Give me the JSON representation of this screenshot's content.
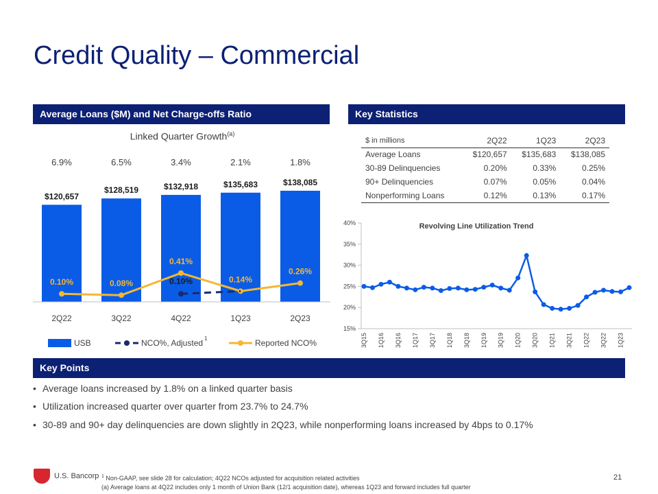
{
  "page": {
    "title": "Credit Quality – Commercial",
    "page_number": "21",
    "logo_text": "U.S. Bancorp"
  },
  "left_panel": {
    "header": "Average Loans ($M) and Net Charge-offs Ratio",
    "growth_title": "Linked Quarter Growth",
    "growth_title_sup": "(a)",
    "growth_values": [
      "6.9%",
      "6.5%",
      "3.4%",
      "2.1%",
      "1.8%"
    ]
  },
  "right_panel": {
    "header": "Key Statistics",
    "table": {
      "columns": [
        "$ in millions",
        "2Q22",
        "1Q23",
        "2Q23"
      ],
      "rows": [
        [
          "Average Loans",
          "$120,657",
          "$135,683",
          "$138,085"
        ],
        [
          "30-89 Delinquencies",
          "0.20%",
          "0.33%",
          "0.25%"
        ],
        [
          "90+ Delinquencies",
          "0.07%",
          "0.05%",
          "0.04%"
        ],
        [
          "Nonperforming Loans",
          "0.12%",
          "0.13%",
          "0.17%"
        ]
      ]
    }
  },
  "key_points": {
    "header": "Key Points",
    "items": [
      "Average loans increased by 1.8% on a linked quarter basis",
      "Utilization increased quarter over quarter from 23.7% to 24.7%",
      "30-89 and 90+ day delinquencies are down slightly in 2Q23, while nonperforming loans increased by 4bps to 0.17%"
    ]
  },
  "footnotes": {
    "note1_sup": "1",
    "note1": "Non-GAAP, see slide 28 for calculation; 4Q22 NCOs adjusted for acquisition related activities",
    "note2": "(a) Average loans at 4Q22 includes only 1 month of Union Bank (12/1 acquisition date), whereas 1Q23 and forward includes full quarter"
  },
  "colors": {
    "navy": "#0c2074",
    "bar_blue": "#0a5ce6",
    "gold": "#f5b731",
    "dark_navy_line": "#1a2a6c",
    "brand_red": "#d7262e"
  },
  "chart_data": [
    {
      "type": "bar",
      "categories": [
        "2Q22",
        "3Q22",
        "4Q22",
        "1Q23",
        "2Q23"
      ],
      "series": [
        {
          "name": "USB",
          "values": [
            120657,
            128519,
            132918,
            135683,
            138085
          ],
          "labels": [
            "$120,657",
            "$128,519",
            "$132,918",
            "$135,683",
            "$138,085"
          ]
        },
        {
          "name": "NCO%, Adjusted",
          "legend_sup": "1",
          "values": [
            null,
            null,
            0.1,
            0.14,
            null
          ],
          "labels": [
            "",
            "",
            "0.10%",
            "",
            ""
          ]
        },
        {
          "name": "Reported NCO%",
          "values": [
            0.1,
            0.08,
            0.41,
            0.14,
            0.26
          ],
          "labels": [
            "0.10%",
            "0.08%",
            "0.41%",
            "0.14%",
            "0.26%"
          ]
        }
      ],
      "legend": "bottom"
    },
    {
      "type": "line",
      "title": "Revolving Line Utilization Trend",
      "x": [
        "3Q15",
        "4Q15",
        "1Q16",
        "2Q16",
        "3Q16",
        "4Q16",
        "1Q17",
        "2Q17",
        "3Q17",
        "4Q17",
        "1Q18",
        "2Q18",
        "3Q18",
        "4Q18",
        "1Q19",
        "2Q19",
        "3Q19",
        "4Q19",
        "1Q20",
        "2Q20",
        "3Q20",
        "4Q20",
        "1Q21",
        "2Q21",
        "3Q21",
        "4Q21",
        "1Q22",
        "2Q22",
        "3Q22",
        "4Q22",
        "1Q23",
        "2Q23"
      ],
      "x_tick_labels": [
        "3Q15",
        "1Q16",
        "3Q16",
        "1Q17",
        "3Q17",
        "1Q18",
        "3Q18",
        "1Q19",
        "3Q19",
        "1Q20",
        "3Q20",
        "1Q21",
        "3Q21",
        "1Q22",
        "3Q22",
        "1Q23"
      ],
      "values": [
        25.0,
        24.7,
        25.5,
        26.0,
        25.0,
        24.6,
        24.2,
        24.8,
        24.6,
        24.0,
        24.5,
        24.6,
        24.2,
        24.3,
        24.8,
        25.3,
        24.6,
        24.1,
        27.0,
        32.3,
        23.7,
        20.7,
        19.8,
        19.6,
        19.8,
        20.5,
        22.5,
        23.6,
        24.1,
        23.8,
        23.7,
        24.7
      ],
      "ylim": [
        15,
        40
      ],
      "y_ticks": [
        "15%",
        "20%",
        "25%",
        "30%",
        "35%",
        "40%"
      ],
      "grid": false
    }
  ]
}
